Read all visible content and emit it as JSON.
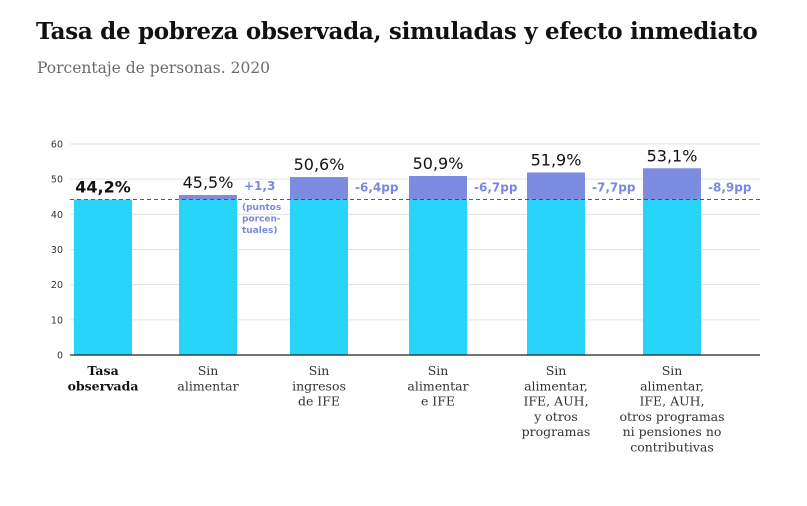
{
  "header": {
    "title": "Tasa de pobreza observada, simuladas y efecto inmediato",
    "subtitle": "Porcentaje de personas. 2020"
  },
  "colors": {
    "base_bar": "#29d4fb",
    "increment_bar": "#7d8ce1",
    "effect_text": "#7a88e0",
    "gridline": "#e3e3e3",
    "reference_line": "#444444",
    "axis": "#222222"
  },
  "chart_data": {
    "type": "bar",
    "title": "Tasa de pobreza observada, simuladas y efecto inmediato",
    "subtitle": "Porcentaje de personas. 2020",
    "xlabel": "",
    "ylabel": "",
    "ylim": [
      0,
      60
    ],
    "yticks": [
      0,
      10,
      20,
      30,
      40,
      50,
      60
    ],
    "grid": true,
    "reference_value": 44.2,
    "categories": [
      {
        "lines": [
          "Tasa",
          "observada"
        ],
        "bold": true
      },
      {
        "lines": [
          "Sin",
          "alimentar"
        ],
        "bold": false
      },
      {
        "lines": [
          "Sin",
          "ingresos",
          "de IFE"
        ],
        "bold": false
      },
      {
        "lines": [
          "Sin",
          "alimentar",
          "e IFE"
        ],
        "bold": false
      },
      {
        "lines": [
          "Sin",
          "alimentar,",
          "IFE, AUH,",
          "y otros",
          "programas"
        ],
        "bold": false
      },
      {
        "lines": [
          "Sin",
          "alimentar,",
          "IFE, AUH,",
          "otros programas",
          "ni pensiones no",
          "contributivas"
        ],
        "bold": false
      }
    ],
    "values": [
      44.2,
      45.5,
      50.6,
      50.9,
      51.9,
      53.1
    ],
    "value_labels": [
      "44,2%",
      "45,5%",
      "50,6%",
      "50,9%",
      "51,9%",
      "53,1%"
    ],
    "effects": [
      null,
      "+1,3",
      "-6,4pp",
      "-6,7pp",
      "-7,7pp",
      "-8,9pp"
    ],
    "effect_note": [
      "(puntos",
      "porcen-",
      "tuales)"
    ]
  }
}
